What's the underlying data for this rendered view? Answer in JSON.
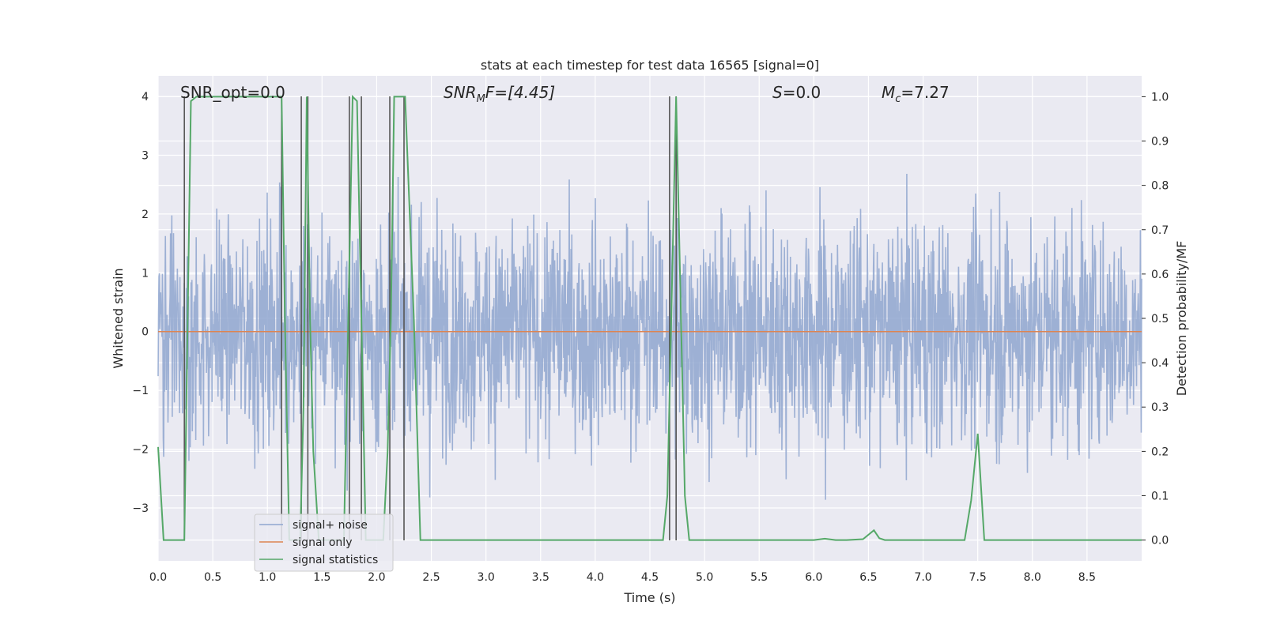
{
  "chart_data": {
    "type": "line",
    "title": "stats at each timestep for test data 16565 [signal=0]",
    "xlabel": "Time (s)",
    "ylabel": "Whitened strain",
    "ylabel_right": "Detection probability/MF",
    "xlim": [
      0.0,
      9.0
    ],
    "ylim": [
      -3.9,
      4.35
    ],
    "ylim_right": [
      -0.047,
      1.047
    ],
    "xticks": [
      "0.0",
      "0.5",
      "1.0",
      "1.5",
      "2.0",
      "2.5",
      "3.0",
      "3.5",
      "4.0",
      "4.5",
      "5.0",
      "5.5",
      "6.0",
      "6.5",
      "7.0",
      "7.5",
      "8.0",
      "8.5"
    ],
    "xtick_values": [
      0.0,
      0.5,
      1.0,
      1.5,
      2.0,
      2.5,
      3.0,
      3.5,
      4.0,
      4.5,
      5.0,
      5.5,
      6.0,
      6.5,
      7.0,
      7.5,
      8.0,
      8.5
    ],
    "yticks": [
      "−3",
      "−2",
      "−1",
      "0",
      "1",
      "2",
      "3",
      "4"
    ],
    "ytick_values": [
      -3,
      -2,
      -1,
      0,
      1,
      2,
      3,
      4
    ],
    "yticks_right": [
      "0.0",
      "0.1",
      "0.2",
      "0.3",
      "0.4",
      "0.5",
      "0.6",
      "0.7",
      "0.8",
      "0.9",
      "1.0"
    ],
    "ytick_right_values": [
      0.0,
      0.1,
      0.2,
      0.3,
      0.4,
      0.5,
      0.6,
      0.7,
      0.8,
      0.9,
      1.0
    ],
    "grid": true,
    "legend_placement": "lower-left",
    "annotations": [
      "SNR_opt=0.0",
      "SNR",
      "M",
      "F=[4.45]",
      "S",
      "=0.0",
      "M",
      "c",
      "=7.27"
    ],
    "annotation_display": {
      "snr_opt": "SNR_opt=0.0",
      "snr_mf_main": "SNR",
      "snr_mf_sub": "M",
      "snr_mf_rest": "F=[4.45]",
      "s_main": "S",
      "s_rest": "=0.0",
      "mc_main": "M",
      "mc_sub": "c",
      "mc_rest": "=7.27"
    },
    "series": [
      {
        "name": "signal+ noise",
        "color": "#8fa6cf",
        "description_values": "dense noise, amplitude mostly within [-2, 2], spikes to about ±3.7",
        "envelope": {
          "typical_low": -2.0,
          "typical_high": 2.0,
          "max_spike": 3.75,
          "min_spike": -3.35
        }
      },
      {
        "name": "signal only",
        "color": "#dd8452",
        "values_constant": 0.0
      },
      {
        "name": "signal statistics",
        "color": "#55a868",
        "axis": "right",
        "x": [
          0.0,
          0.05,
          0.1,
          0.24,
          0.3,
          0.35,
          0.4,
          0.6,
          0.8,
          1.0,
          1.1,
          1.13,
          1.16,
          1.2,
          1.3,
          1.33,
          1.36,
          1.39,
          1.42,
          1.47,
          1.5,
          1.7,
          1.74,
          1.78,
          1.82,
          1.86,
          1.9,
          1.94,
          1.98,
          2.06,
          2.1,
          2.13,
          2.16,
          2.2,
          2.26,
          2.34,
          2.4,
          2.6,
          3.0,
          3.5,
          4.0,
          4.5,
          4.62,
          4.66,
          4.7,
          4.74,
          4.78,
          4.82,
          4.86,
          4.9,
          5.0,
          5.5,
          6.0,
          6.1,
          6.2,
          6.3,
          6.45,
          6.5,
          6.55,
          6.6,
          6.65,
          7.0,
          7.38,
          7.44,
          7.5,
          7.56,
          7.6,
          8.0,
          8.5,
          9.0
        ],
        "values": [
          0.21,
          0.0,
          0.0,
          0.0,
          0.99,
          1.0,
          1.0,
          1.0,
          1.0,
          1.0,
          1.0,
          1.0,
          0.5,
          0.0,
          0.0,
          0.3,
          1.0,
          0.5,
          0.2,
          0.0,
          0.0,
          0.0,
          0.5,
          1.0,
          0.99,
          0.5,
          0.0,
          0.0,
          0.0,
          0.0,
          0.2,
          0.5,
          1.0,
          1.0,
          1.0,
          0.5,
          0.0,
          0.0,
          0.0,
          0.0,
          0.0,
          0.0,
          0.0,
          0.1,
          0.55,
          1.0,
          0.55,
          0.1,
          0.0,
          0.0,
          0.0,
          0.0,
          0.0,
          0.003,
          0.0,
          0.0,
          0.002,
          0.012,
          0.022,
          0.004,
          0.0,
          0.0,
          0.0,
          0.09,
          0.24,
          0.0,
          0.0,
          0.0,
          0.0,
          0.0
        ]
      }
    ],
    "vertical_lines_x": [
      0.24,
      1.13,
      1.31,
      1.37,
      1.75,
      1.86,
      2.12,
      2.25,
      4.68,
      4.74
    ],
    "vertical_lines_color": "#555555"
  }
}
